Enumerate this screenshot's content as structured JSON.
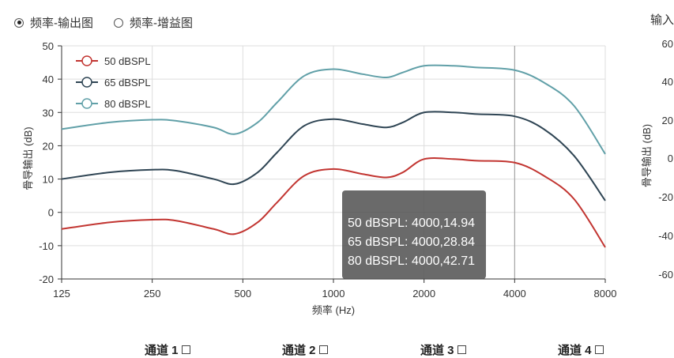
{
  "view_mode": {
    "options": [
      {
        "label": "频率-输出图",
        "selected": true
      },
      {
        "label": "频率-增益图",
        "selected": false
      }
    ]
  },
  "right_panel": {
    "title": "输入"
  },
  "chart_data": {
    "type": "line",
    "xlabel": "频率 (Hz)",
    "ylabel": "骨导输出 (dB)",
    "x_scale": "log2",
    "x_ticks": [
      "125",
      "250",
      "500",
      "1000",
      "2000",
      "4000",
      "8000"
    ],
    "ylim": [
      -20,
      50
    ],
    "y_ticks": [
      "50",
      "40",
      "30",
      "20",
      "10",
      "0",
      "-10",
      "-20"
    ],
    "grid": true,
    "legend_position": "top-left",
    "series": [
      {
        "name": "50 dBSPL",
        "color": "#c23531",
        "x": [
          125,
          180,
          250,
          300,
          400,
          470,
          560,
          650,
          800,
          1000,
          1250,
          1500,
          1700,
          2000,
          2500,
          3000,
          4000,
          5000,
          6300,
          8000
        ],
        "y": [
          -5,
          -3,
          -2.2,
          -2.5,
          -5,
          -6.5,
          -3,
          3,
          11,
          13,
          11.5,
          10.5,
          12,
          16,
          16,
          15.5,
          14.94,
          11,
          4,
          -10.5
        ]
      },
      {
        "name": "65 dBSPL",
        "color": "#2f4554",
        "x": [
          125,
          180,
          250,
          300,
          400,
          470,
          560,
          650,
          800,
          1000,
          1250,
          1500,
          1700,
          2000,
          2500,
          3000,
          4000,
          5000,
          6300,
          8000
        ],
        "y": [
          10,
          12,
          12.8,
          12.5,
          10,
          8.5,
          12,
          18,
          26,
          28,
          26.5,
          25.5,
          27,
          30,
          30,
          29.5,
          28.84,
          25,
          17,
          3.5
        ]
      },
      {
        "name": "80 dBSPL",
        "color": "#61a0a8",
        "x": [
          125,
          180,
          250,
          300,
          400,
          470,
          560,
          650,
          800,
          1000,
          1250,
          1500,
          1700,
          2000,
          2500,
          3000,
          4000,
          5000,
          6300,
          8000
        ],
        "y": [
          25,
          27,
          27.8,
          27.5,
          25.5,
          23.5,
          27,
          33,
          41,
          43,
          41.5,
          40.5,
          42,
          44,
          44,
          43.5,
          42.71,
          39,
          32,
          17.5
        ]
      }
    ],
    "hover_x": 4000,
    "tooltip_lines": [
      "50 dBSPL: 4000,14.94",
      "65 dBSPL: 4000,28.84",
      "80 dBSPL: 4000,42.71"
    ],
    "right_axis": {
      "ylabel": "骨导输出 (dB)",
      "ticks": [
        "60",
        "40",
        "20",
        "0",
        "-20",
        "-40",
        "-60"
      ]
    }
  },
  "channels": [
    "通道 1",
    "通道 2",
    "通道 3",
    "通道 4"
  ]
}
